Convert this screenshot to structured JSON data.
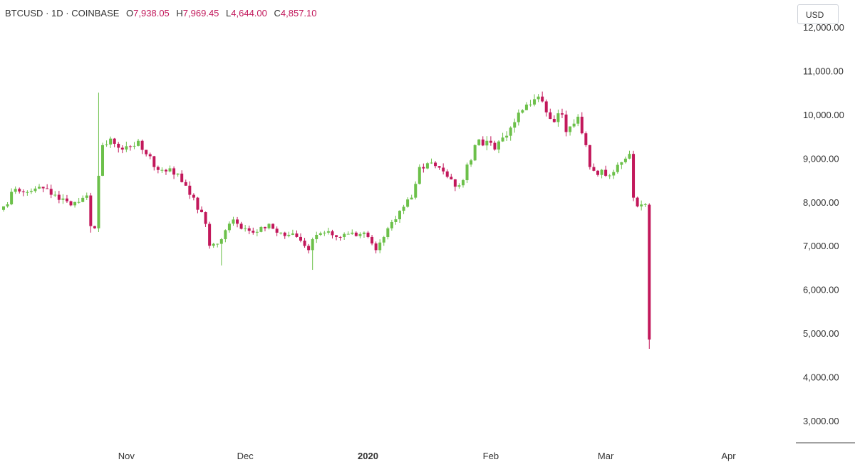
{
  "header": {
    "symbol": "BTCUSD",
    "interval": "1D",
    "exchange": "COINBASE",
    "ohlc": [
      {
        "label": "O",
        "value": "7,938.05"
      },
      {
        "label": "H",
        "value": "7,969.45"
      },
      {
        "label": "L",
        "value": "4,644.00"
      },
      {
        "label": "C",
        "value": "4,857.10"
      }
    ]
  },
  "currency_button": "USD",
  "colors": {
    "up": "#6cc04a",
    "down": "#c2185b",
    "text": "#333333",
    "axis_line": "#444444"
  },
  "chart_data": {
    "type": "candlestick",
    "y_axis": {
      "range": [
        2600,
        12300
      ],
      "ticks": [
        3000,
        4000,
        5000,
        6000,
        7000,
        8000,
        9000,
        10000,
        11000,
        12000
      ],
      "tick_labels": [
        "3,000.00",
        "4,000.00",
        "5,000.00",
        "6,000.00",
        "7,000.00",
        "8,000.00",
        "9,000.00",
        "10,000.00",
        "11,000.00",
        "12,000.00"
      ],
      "position": "right"
    },
    "x_axis": {
      "start": "2019-10-01",
      "end": "2020-04-11",
      "ticks": [
        {
          "date": "2019-11-01",
          "label": "Nov",
          "bold": false
        },
        {
          "date": "2019-12-01",
          "label": "Dec",
          "bold": false
        },
        {
          "date": "2020-01-01",
          "label": "2020",
          "bold": true
        },
        {
          "date": "2020-02-01",
          "label": "Feb",
          "bold": false
        },
        {
          "date": "2020-03-01",
          "label": "Mar",
          "bold": false
        },
        {
          "date": "2020-04-01",
          "label": "Apr",
          "bold": false
        }
      ]
    },
    "grid": false,
    "anchors": [
      [
        "2019-10-01",
        7900
      ],
      [
        "2019-10-04",
        8300
      ],
      [
        "2019-10-08",
        8250
      ],
      [
        "2019-10-12",
        8300
      ],
      [
        "2019-10-15",
        8050
      ],
      [
        "2019-10-19",
        8000
      ],
      [
        "2019-10-22",
        8150
      ],
      [
        "2019-10-23",
        7450
      ],
      [
        "2019-10-24",
        7400
      ],
      [
        "2019-10-25",
        8600
      ],
      [
        "2019-10-26",
        9300
      ],
      [
        "2019-10-28",
        9450
      ],
      [
        "2019-10-31",
        9200
      ],
      [
        "2019-11-04",
        9400
      ],
      [
        "2019-11-08",
        8800
      ],
      [
        "2019-11-11",
        8700
      ],
      [
        "2019-11-14",
        8650
      ],
      [
        "2019-11-18",
        8100
      ],
      [
        "2019-11-21",
        7500
      ],
      [
        "2019-11-22",
        7000
      ],
      [
        "2019-11-25",
        7150
      ],
      [
        "2019-11-28",
        7600
      ],
      [
        "2019-12-01",
        7400
      ],
      [
        "2019-12-03",
        7300
      ],
      [
        "2019-12-07",
        7500
      ],
      [
        "2019-12-10",
        7300
      ],
      [
        "2019-12-14",
        7200
      ],
      [
        "2019-12-17",
        6900
      ],
      [
        "2019-12-18",
        7150
      ],
      [
        "2019-12-21",
        7300
      ],
      [
        "2019-12-24",
        7200
      ],
      [
        "2019-12-28",
        7300
      ],
      [
        "2020-01-01",
        7200
      ],
      [
        "2020-01-03",
        6900
      ],
      [
        "2020-01-06",
        7400
      ],
      [
        "2020-01-09",
        7800
      ],
      [
        "2020-01-12",
        8100
      ],
      [
        "2020-01-14",
        8800
      ],
      [
        "2020-01-17",
        8900
      ],
      [
        "2020-01-20",
        8700
      ],
      [
        "2020-01-23",
        8350
      ],
      [
        "2020-01-25",
        8500
      ],
      [
        "2020-01-28",
        9300
      ],
      [
        "2020-01-31",
        9400
      ],
      [
        "2020-02-02",
        9200
      ],
      [
        "2020-02-06",
        9700
      ],
      [
        "2020-02-09",
        10100
      ],
      [
        "2020-02-12",
        10350
      ],
      [
        "2020-02-14",
        10300
      ],
      [
        "2020-02-16",
        9900
      ],
      [
        "2020-02-19",
        10000
      ],
      [
        "2020-02-20",
        9600
      ],
      [
        "2020-02-23",
        9950
      ],
      [
        "2020-02-25",
        9300
      ],
      [
        "2020-02-26",
        8800
      ],
      [
        "2020-03-01",
        8600
      ],
      [
        "2020-03-04",
        8850
      ],
      [
        "2020-03-07",
        9100
      ],
      [
        "2020-03-08",
        8100
      ],
      [
        "2020-03-09",
        7900
      ],
      [
        "2020-03-11",
        7950
      ]
    ],
    "last_candle": {
      "date": "2020-03-12",
      "open": 7938.05,
      "high": 7969.45,
      "low": 4644.0,
      "close": 4857.1
    }
  }
}
